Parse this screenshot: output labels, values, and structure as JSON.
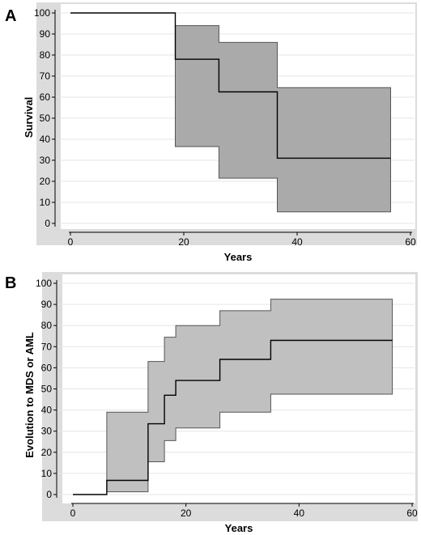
{
  "chart_data": [
    {
      "panel_label": "A",
      "type": "step-survival",
      "title": "",
      "xlabel": "Years",
      "ylabel": "Survival",
      "xlim": [
        0,
        60
      ],
      "ylim": [
        0,
        100
      ],
      "x_ticks": [
        0,
        20,
        40,
        60
      ],
      "y_ticks": [
        0,
        10,
        20,
        30,
        40,
        50,
        60,
        70,
        80,
        90,
        100
      ],
      "grid": "horizontal",
      "colors": {
        "line": "#000000",
        "band": "#aaaaaa",
        "panel_bg": "#dcdcdc",
        "plot_bg": "#ffffff",
        "grid": "#e6e6e6"
      },
      "series": [
        {
          "role": "estimate",
          "x": [
            0,
            18.5,
            26.2,
            36.5,
            56.5
          ],
          "y": [
            100,
            78,
            62.5,
            31,
            31
          ]
        },
        {
          "role": "ci_upper",
          "x": [
            18.5,
            26.2,
            36.5,
            56.5
          ],
          "y": [
            94,
            86,
            64.5,
            64.5
          ]
        },
        {
          "role": "ci_lower",
          "x": [
            18.5,
            26.2,
            36.5,
            56.5
          ],
          "y": [
            36.5,
            21.5,
            5.5,
            5.5
          ]
        }
      ]
    },
    {
      "panel_label": "B",
      "type": "step-cumulative-incidence",
      "title": "",
      "xlabel": "Years",
      "ylabel": "Evolution to MDS or AML",
      "xlim": [
        0,
        60
      ],
      "ylim": [
        0,
        100
      ],
      "x_ticks": [
        0,
        20,
        40,
        60
      ],
      "y_ticks": [
        0,
        10,
        20,
        30,
        40,
        50,
        60,
        70,
        80,
        90,
        100
      ],
      "grid": "horizontal",
      "colors": {
        "line": "#000000",
        "band": "#c0c0c0",
        "panel_bg": "#dcdcdc",
        "plot_bg": "#ffffff",
        "grid": "#e6e6e6"
      },
      "series": [
        {
          "role": "estimate",
          "x": [
            0,
            6,
            13.3,
            16.2,
            18.2,
            26,
            35,
            56.5
          ],
          "y": [
            0,
            6.7,
            33.5,
            47,
            54,
            64,
            73,
            73
          ]
        },
        {
          "role": "ci_upper",
          "x": [
            6,
            13.3,
            16.2,
            18.2,
            26,
            35,
            56.5
          ],
          "y": [
            39,
            63,
            74.5,
            80,
            87,
            92.5,
            92.5
          ]
        },
        {
          "role": "ci_lower",
          "x": [
            6,
            13.3,
            16.2,
            18.2,
            26,
            35,
            56.5
          ],
          "y": [
            1.3,
            15.5,
            25.5,
            31.5,
            39,
            47.5,
            47.5
          ]
        }
      ]
    }
  ]
}
